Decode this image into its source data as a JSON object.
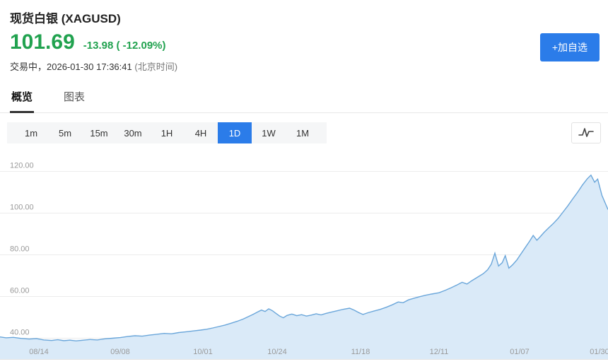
{
  "colors": {
    "green": "#21a24f",
    "blue": "#2b7ce9"
  },
  "header": {
    "title": "现货白银 (XAGUSD)",
    "price": "101.69",
    "change": "-13.98 ( -12.09%)",
    "status_prefix": "交易中，",
    "status_time": "2026-01-30 17:36:41",
    "status_tz": "(北京时间)",
    "add_watchlist_label": "+加自选"
  },
  "tabs": [
    {
      "label": "概览",
      "active": true
    },
    {
      "label": "图表",
      "active": false
    }
  ],
  "toolbar": {
    "periods": [
      {
        "label": "1m",
        "active": false
      },
      {
        "label": "5m",
        "active": false
      },
      {
        "label": "15m",
        "active": false
      },
      {
        "label": "30m",
        "active": false
      },
      {
        "label": "1H",
        "active": false
      },
      {
        "label": "4H",
        "active": false
      },
      {
        "label": "1D",
        "active": true
      },
      {
        "label": "1W",
        "active": false
      },
      {
        "label": "1M",
        "active": false
      }
    ],
    "icons": {
      "chart_type": "line-chart-icon"
    }
  },
  "chart_data": {
    "type": "area",
    "ylim": [
      30,
      130
    ],
    "yticks": [
      40,
      60,
      80,
      100,
      120
    ],
    "ytick_labels": [
      "40.00",
      "60.00",
      "80.00",
      "100.00",
      "120.00"
    ],
    "x_labels": [
      {
        "label": "08/14",
        "pos": 0.064
      },
      {
        "label": "09/08",
        "pos": 0.198
      },
      {
        "label": "10/01",
        "pos": 0.334
      },
      {
        "label": "10/24",
        "pos": 0.456
      },
      {
        "label": "11/18",
        "pos": 0.593
      },
      {
        "label": "12/11",
        "pos": 0.722
      },
      {
        "label": "01/07",
        "pos": 0.855
      },
      {
        "label": "01/30",
        "pos": 0.986
      }
    ],
    "grid_on": true,
    "legend": "none",
    "line_color": "#6aa6da",
    "fill_color": "#daeaf8",
    "grid_color": "#ececec",
    "axis_text_color": "#999999",
    "points": [
      [
        0.0,
        40.6
      ],
      [
        0.01,
        40.2
      ],
      [
        0.022,
        40.4
      ],
      [
        0.035,
        39.9
      ],
      [
        0.048,
        39.6
      ],
      [
        0.06,
        39.8
      ],
      [
        0.072,
        39.2
      ],
      [
        0.085,
        38.9
      ],
      [
        0.095,
        39.3
      ],
      [
        0.105,
        38.8
      ],
      [
        0.115,
        39.1
      ],
      [
        0.125,
        38.7
      ],
      [
        0.135,
        39.0
      ],
      [
        0.148,
        39.4
      ],
      [
        0.16,
        39.2
      ],
      [
        0.172,
        39.7
      ],
      [
        0.185,
        40.0
      ],
      [
        0.198,
        40.3
      ],
      [
        0.21,
        40.8
      ],
      [
        0.222,
        41.2
      ],
      [
        0.234,
        41.0
      ],
      [
        0.246,
        41.5
      ],
      [
        0.258,
        41.9
      ],
      [
        0.27,
        42.3
      ],
      [
        0.282,
        42.1
      ],
      [
        0.294,
        42.7
      ],
      [
        0.306,
        43.1
      ],
      [
        0.318,
        43.5
      ],
      [
        0.33,
        43.9
      ],
      [
        0.34,
        44.3
      ],
      [
        0.35,
        44.9
      ],
      [
        0.36,
        45.6
      ],
      [
        0.37,
        46.3
      ],
      [
        0.38,
        47.2
      ],
      [
        0.39,
        48.1
      ],
      [
        0.4,
        49.2
      ],
      [
        0.408,
        50.3
      ],
      [
        0.416,
        51.4
      ],
      [
        0.424,
        52.6
      ],
      [
        0.43,
        53.5
      ],
      [
        0.436,
        52.8
      ],
      [
        0.442,
        54.1
      ],
      [
        0.448,
        53.2
      ],
      [
        0.454,
        51.9
      ],
      [
        0.46,
        50.6
      ],
      [
        0.466,
        49.8
      ],
      [
        0.472,
        50.9
      ],
      [
        0.48,
        51.6
      ],
      [
        0.488,
        50.8
      ],
      [
        0.496,
        51.3
      ],
      [
        0.504,
        50.6
      ],
      [
        0.512,
        51.1
      ],
      [
        0.52,
        51.7
      ],
      [
        0.528,
        51.2
      ],
      [
        0.536,
        51.9
      ],
      [
        0.545,
        52.5
      ],
      [
        0.555,
        53.2
      ],
      [
        0.565,
        53.9
      ],
      [
        0.575,
        54.4
      ],
      [
        0.583,
        53.4
      ],
      [
        0.59,
        52.3
      ],
      [
        0.597,
        51.4
      ],
      [
        0.605,
        52.2
      ],
      [
        0.615,
        53.0
      ],
      [
        0.625,
        53.8
      ],
      [
        0.635,
        54.8
      ],
      [
        0.645,
        56.0
      ],
      [
        0.655,
        57.4
      ],
      [
        0.663,
        57.0
      ],
      [
        0.672,
        58.4
      ],
      [
        0.681,
        59.2
      ],
      [
        0.69,
        59.9
      ],
      [
        0.7,
        60.6
      ],
      [
        0.71,
        61.2
      ],
      [
        0.722,
        61.8
      ],
      [
        0.732,
        62.9
      ],
      [
        0.742,
        64.2
      ],
      [
        0.752,
        65.6
      ],
      [
        0.76,
        66.8
      ],
      [
        0.768,
        66.0
      ],
      [
        0.776,
        67.6
      ],
      [
        0.785,
        69.2
      ],
      [
        0.795,
        71.0
      ],
      [
        0.802,
        72.8
      ],
      [
        0.808,
        75.5
      ],
      [
        0.814,
        80.8
      ],
      [
        0.82,
        74.6
      ],
      [
        0.826,
        76.2
      ],
      [
        0.831,
        79.6
      ],
      [
        0.837,
        73.6
      ],
      [
        0.843,
        75.2
      ],
      [
        0.85,
        77.5
      ],
      [
        0.857,
        80.5
      ],
      [
        0.864,
        83.5
      ],
      [
        0.871,
        86.5
      ],
      [
        0.877,
        89.3
      ],
      [
        0.883,
        87.0
      ],
      [
        0.889,
        88.8
      ],
      [
        0.895,
        90.8
      ],
      [
        0.902,
        92.8
      ],
      [
        0.91,
        95.0
      ],
      [
        0.918,
        97.5
      ],
      [
        0.926,
        100.5
      ],
      [
        0.934,
        103.5
      ],
      [
        0.942,
        106.8
      ],
      [
        0.95,
        110.0
      ],
      [
        0.958,
        113.5
      ],
      [
        0.966,
        116.5
      ],
      [
        0.972,
        118.2
      ],
      [
        0.978,
        114.8
      ],
      [
        0.983,
        116.3
      ],
      [
        0.99,
        108.5
      ],
      [
        1.0,
        101.7
      ]
    ]
  }
}
